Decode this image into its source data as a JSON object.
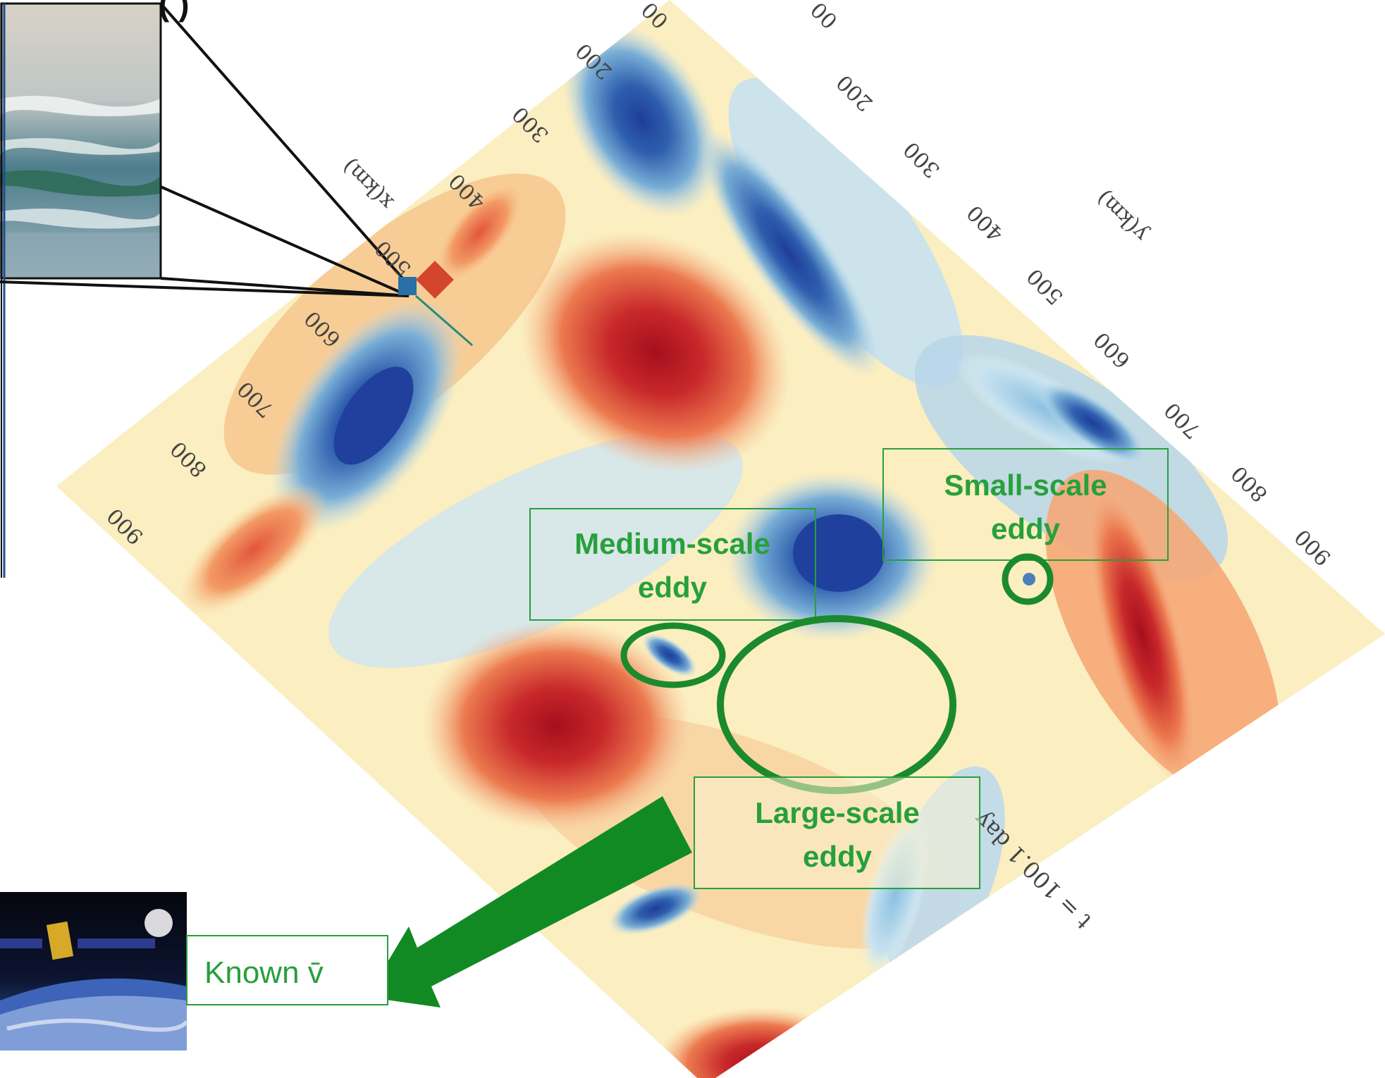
{
  "header_partial_text": "(                                                                )",
  "axis_x": {
    "label": "x(km)",
    "ticks": [
      "200",
      "300",
      "400",
      "500",
      "600",
      "700",
      "800",
      "900"
    ]
  },
  "axis_y": {
    "label": "y(km)",
    "ticks": [
      "200",
      "300",
      "400",
      "500",
      "600",
      "700",
      "800",
      "900"
    ]
  },
  "top_tick_fragments": [
    "00",
    "00"
  ],
  "time_label": "t = 100.1 day",
  "annotations": {
    "small": "Small-scale eddy",
    "small_line1": "Small-scale",
    "small_line2": "eddy",
    "medium_line1": "Medium-scale",
    "medium_line2": "eddy",
    "large_line1": "Large-scale",
    "large_line2": "eddy"
  },
  "known_label": "Known v̄",
  "colors": {
    "annotation_green": "#27a03c",
    "arrow_green": "#128a24",
    "warm": "#c0262a",
    "cool": "#2b4fa8",
    "neutral": "#fbf2c4"
  },
  "icons": [
    "ocean-waves-photo",
    "satellite-earth-photo",
    "zoom-callout-lines",
    "downward-arrow"
  ]
}
